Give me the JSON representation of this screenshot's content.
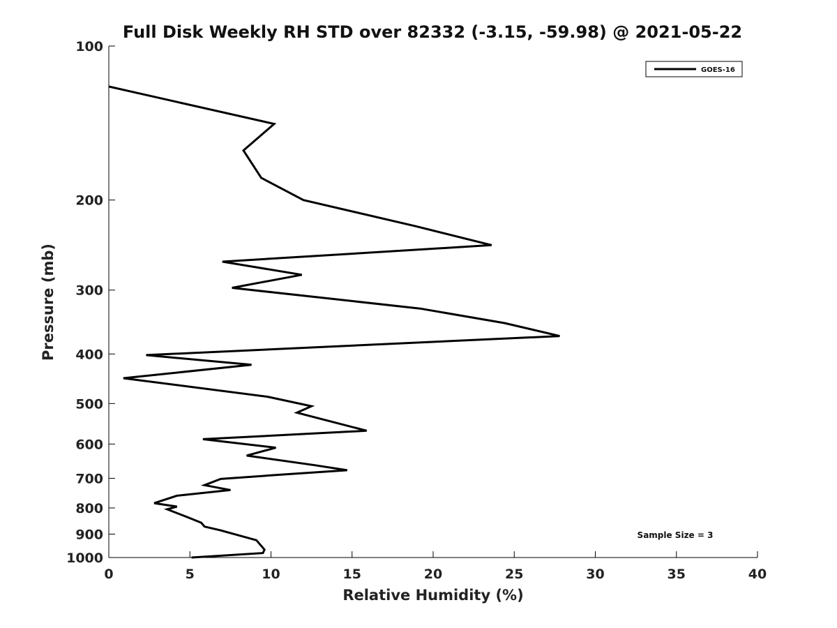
{
  "chart_data": {
    "type": "line",
    "title": "Full Disk Weekly RH STD over 82332 (-3.15, -59.98) @ 2021-05-22",
    "xlabel": "Relative Humidity (%)",
    "ylabel": "Pressure (mb)",
    "xlim": [
      0,
      40
    ],
    "ylim": [
      100,
      1000
    ],
    "yscale": "log",
    "y_reversed": true,
    "grid": false,
    "x_ticks": [
      0,
      5,
      10,
      15,
      20,
      25,
      30,
      35,
      40
    ],
    "y_ticks": [
      100,
      200,
      300,
      400,
      500,
      600,
      700,
      800,
      900,
      1000
    ],
    "legend": {
      "position": "top-right",
      "entries": [
        "GOES-16"
      ]
    },
    "annotation": "Sample Size = 3",
    "series": [
      {
        "name": "GOES-16",
        "color": "#000000",
        "x": [
          0.0,
          10.2,
          8.3,
          9.4,
          12.0,
          18.9,
          23.6,
          7.0,
          11.9,
          7.6,
          19.2,
          24.4,
          27.8,
          2.3,
          8.8,
          0.9,
          9.8,
          12.5,
          11.6,
          13.2,
          15.9,
          5.8,
          10.3,
          8.5,
          12.7,
          14.7,
          10.2,
          6.9,
          5.9,
          7.5,
          4.2,
          2.8,
          4.2,
          3.6,
          4.9,
          5.7,
          5.9,
          6.9,
          9.1,
          9.6,
          9.5,
          5.1
        ],
        "y": [
          120,
          142,
          160,
          181,
          200,
          225,
          245,
          264,
          280,
          297,
          326,
          348,
          369,
          402,
          420,
          446,
          485,
          506,
          521,
          537,
          565,
          587,
          610,
          632,
          660,
          675,
          690,
          702,
          722,
          738,
          757,
          783,
          795,
          805,
          835,
          855,
          870,
          885,
          925,
          965,
          980,
          1000
        ]
      }
    ]
  }
}
